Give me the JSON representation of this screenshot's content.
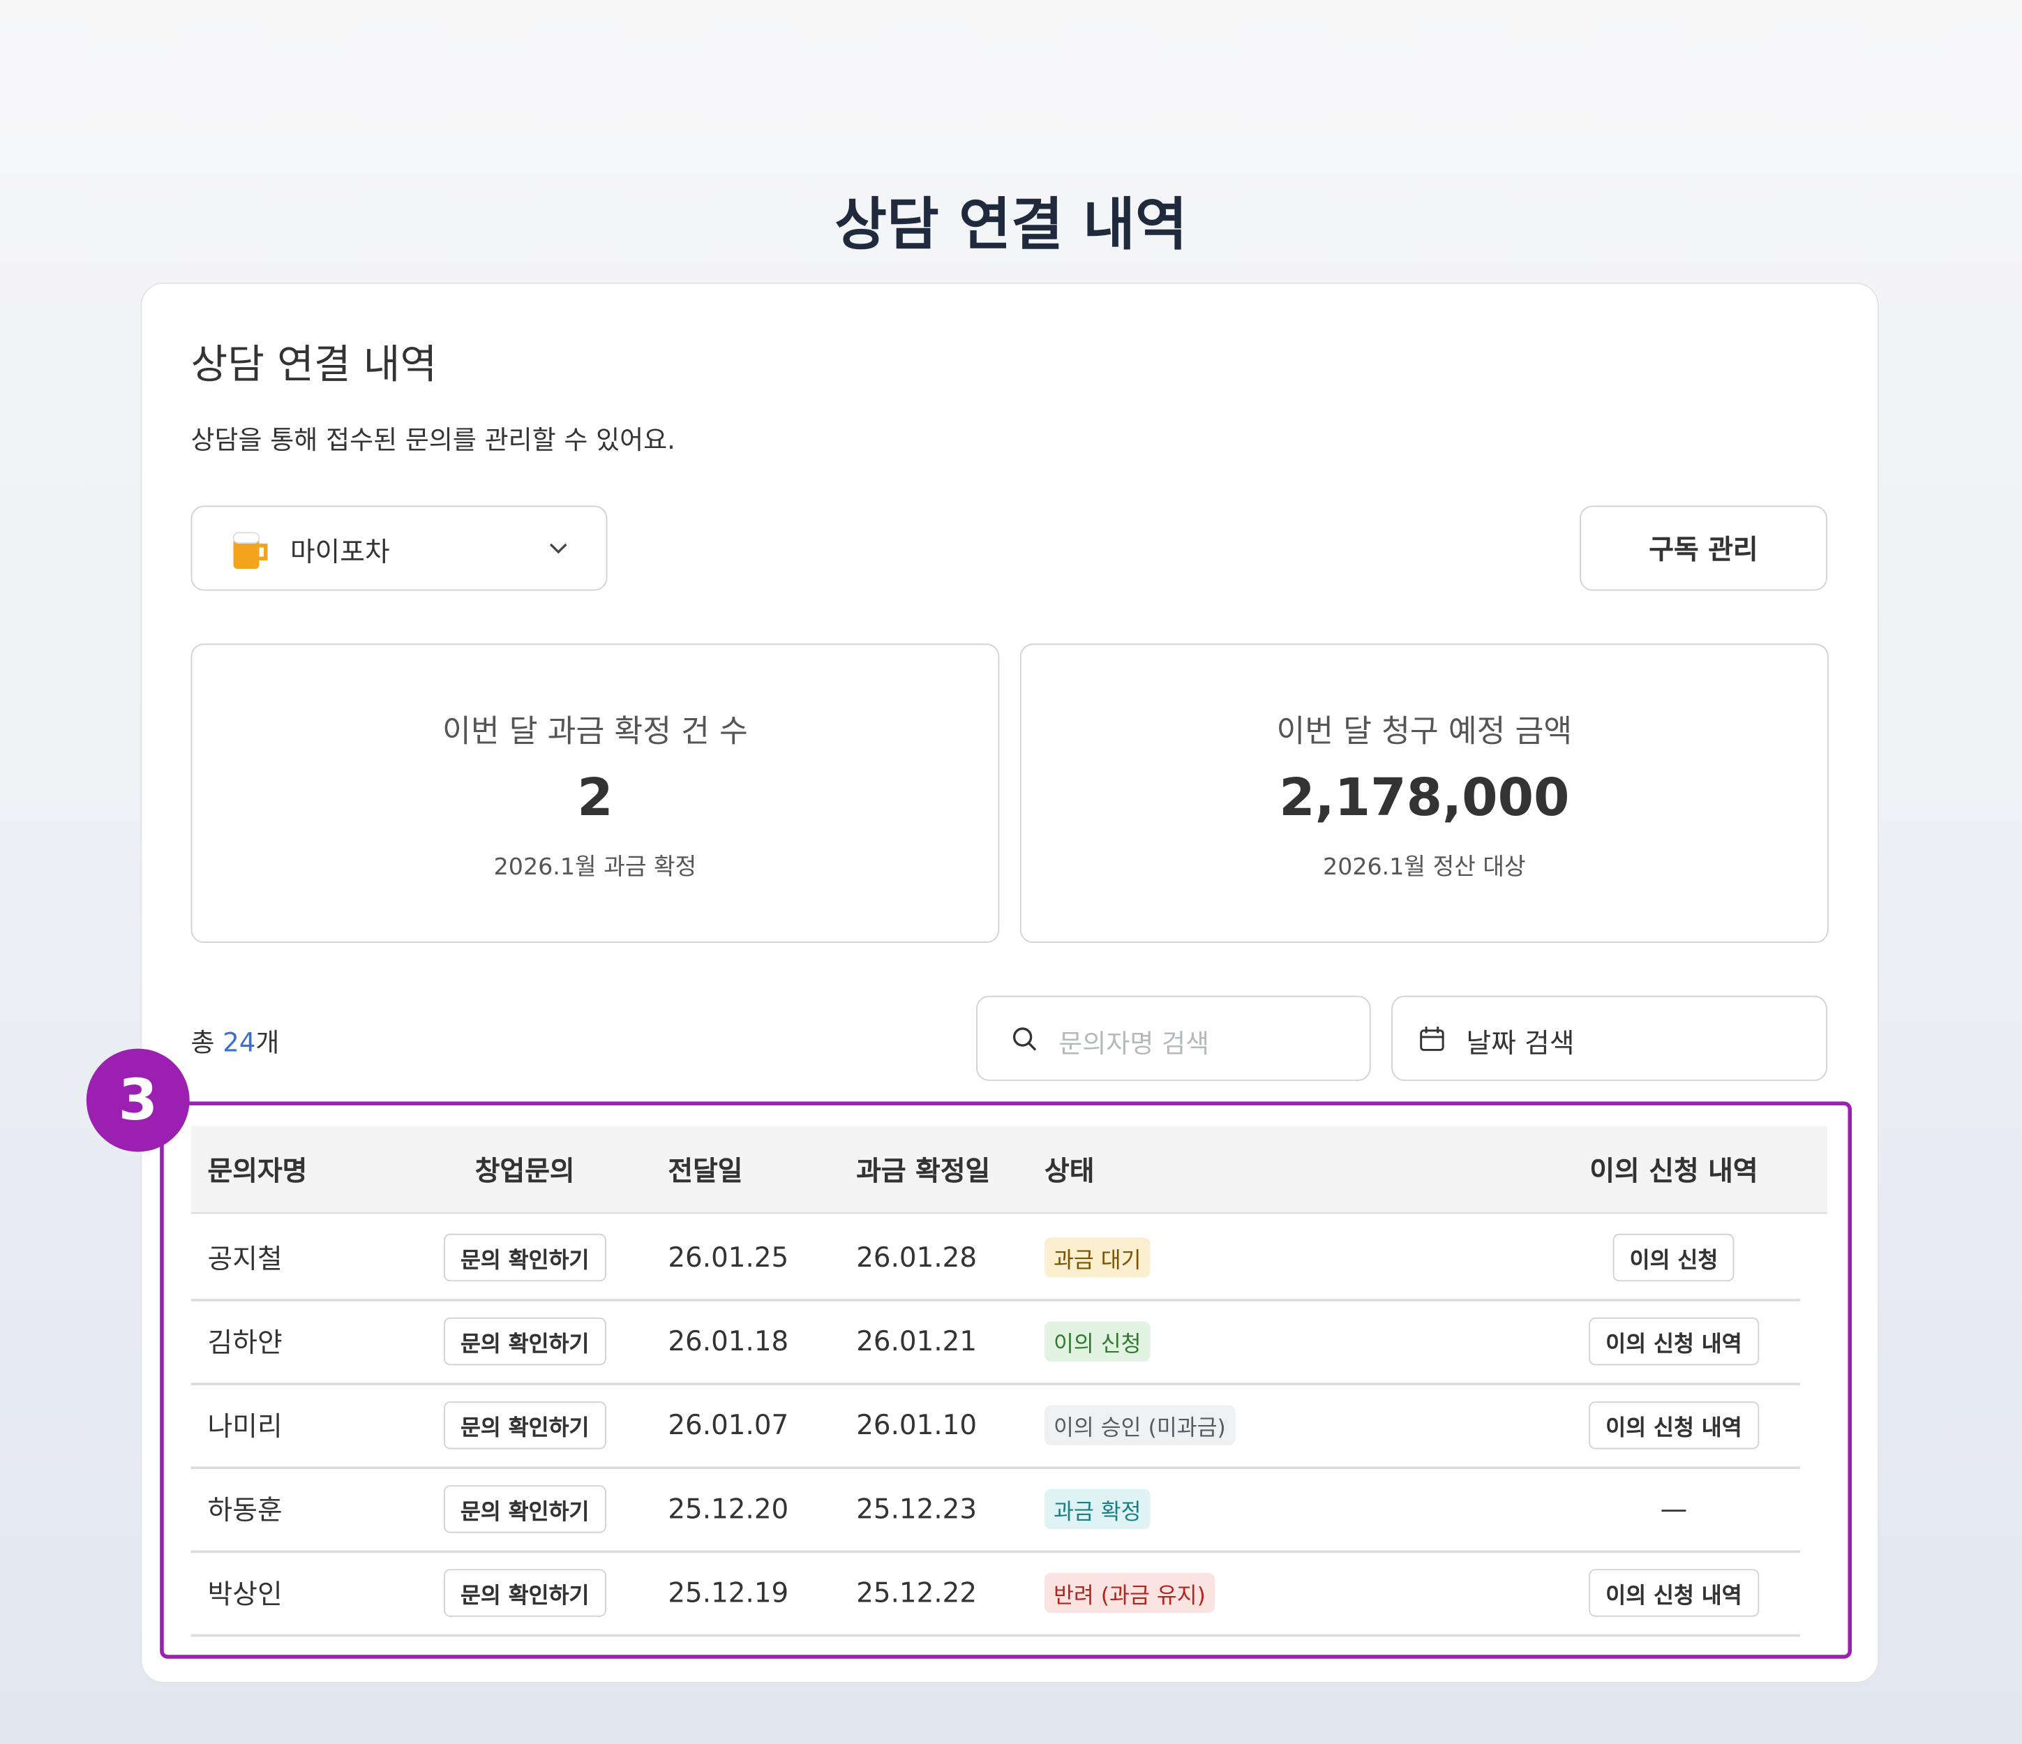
{
  "page_title": "상담 연결 내역",
  "card": {
    "title": "상담 연결 내역",
    "description": "상담을 통해 접수된 문의를 관리할 수 있어요.",
    "store_select": "마이포차",
    "subscription_button": "구독 관리",
    "stats": [
      {
        "label": "이번 달 과금 확정 건 수",
        "value": "2",
        "note": "2026.1월 과금 확정"
      },
      {
        "label": "이번 달 청구 예정 금액",
        "value": "2,178,000",
        "note": "2026.1월 정산 대상"
      }
    ],
    "total": {
      "prefix": "총",
      "count": "24",
      "suffix": "개"
    },
    "search_placeholder": "문의자명 검색",
    "date_search": "날짜 검색",
    "step_badge": "3",
    "table": {
      "headers": [
        "문의자명",
        "창업문의",
        "전달일",
        "과금 확정일",
        "상태",
        "이의 신청 내역"
      ],
      "rows": [
        {
          "name": "공지철",
          "inquiry": "문의 확인하기",
          "sent": "26.01.25",
          "confirmed": "26.01.28",
          "status": {
            "text": "과금 대기",
            "color": "#7a5200",
            "background": "#fcefcf"
          },
          "appeal": {
            "text": "이의 신청",
            "button": true
          }
        },
        {
          "name": "김하얀",
          "inquiry": "문의 확인하기",
          "sent": "26.01.18",
          "confirmed": "26.01.21",
          "status": {
            "text": "이의 신청",
            "color": "#2f7a2f",
            "background": "#e2f3e2"
          },
          "appeal": {
            "text": "이의 신청 내역",
            "button": true
          }
        },
        {
          "name": "나미리",
          "inquiry": "문의 확인하기",
          "sent": "26.01.07",
          "confirmed": "26.01.10",
          "status": {
            "text": "이의 승인 (미과금)",
            "color": "#555b63",
            "background": "#eef0f2"
          },
          "appeal": {
            "text": "이의 신청 내역",
            "button": true
          }
        },
        {
          "name": "하동훈",
          "inquiry": "문의 확인하기",
          "sent": "25.12.20",
          "confirmed": "25.12.23",
          "status": {
            "text": "과금 확정",
            "color": "#1a7f86",
            "background": "#dff3f4"
          },
          "appeal": {
            "text": "—",
            "button": false
          }
        },
        {
          "name": "박상인",
          "inquiry": "문의 확인하기",
          "sent": "25.12.19",
          "confirmed": "25.12.22",
          "status": {
            "text": "반려 (과금 유지)",
            "color": "#b3261e",
            "background": "#fbe3e2"
          },
          "appeal": {
            "text": "이의 신청 내역",
            "button": true
          }
        }
      ]
    }
  }
}
